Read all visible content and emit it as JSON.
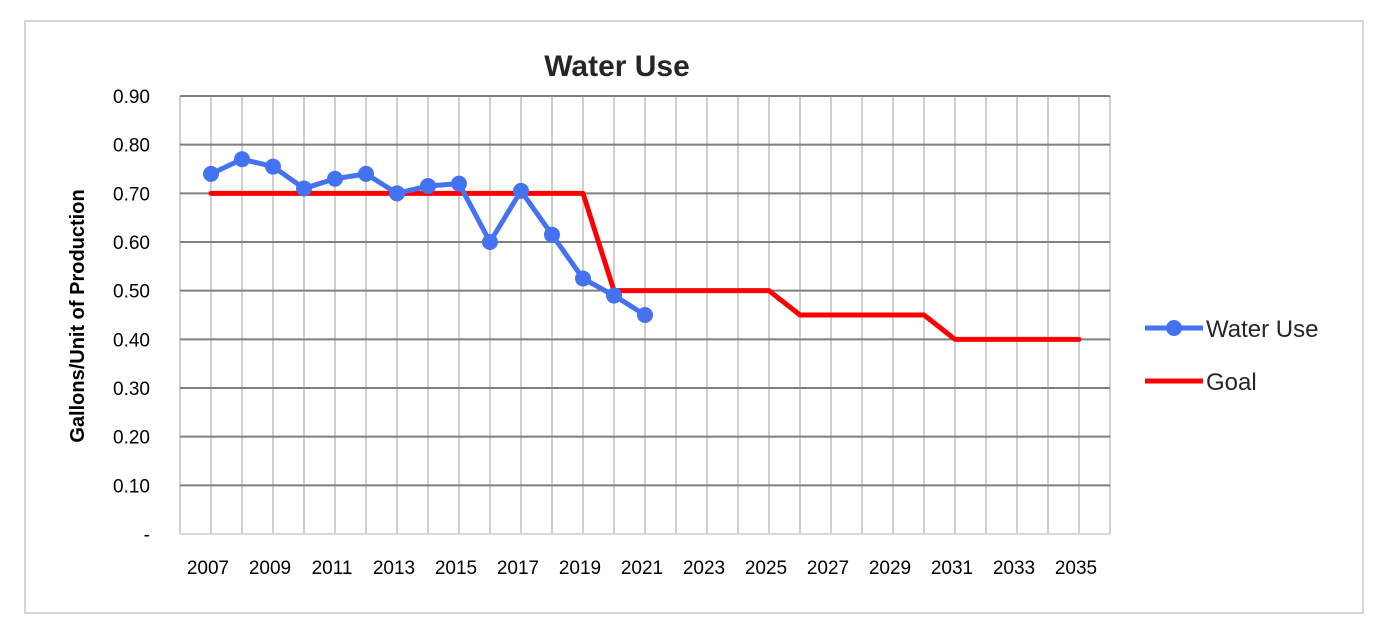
{
  "chart_data": {
    "type": "line",
    "title": "Water Use",
    "xlabel": "",
    "ylabel": "Gallons/Unit of Production",
    "xlim": [
      2006,
      2036
    ],
    "ylim": [
      0,
      0.9
    ],
    "x_tick_labels": [
      "2007",
      "2009",
      "2011",
      "2013",
      "2015",
      "2017",
      "2019",
      "2021",
      "2023",
      "2025",
      "2027",
      "2029",
      "2031",
      "2033",
      "2035"
    ],
    "y_tick_labels": [
      "-",
      "0.10",
      "0.20",
      "0.30",
      "0.40",
      "0.50",
      "0.60",
      "0.70",
      "0.80",
      "0.90"
    ],
    "grid": true,
    "legend_position": "right",
    "series": [
      {
        "name": "Water Use",
        "color": "#4472f0",
        "marker": "circle",
        "x": [
          2007,
          2008,
          2009,
          2010,
          2011,
          2012,
          2013,
          2014,
          2015,
          2016,
          2017,
          2018,
          2019,
          2020,
          2021
        ],
        "y": [
          0.74,
          0.77,
          0.755,
          0.71,
          0.73,
          0.74,
          0.7,
          0.715,
          0.72,
          0.6,
          0.705,
          0.615,
          0.525,
          0.49,
          0.45
        ]
      },
      {
        "name": "Goal",
        "color": "#ff0000",
        "marker": "none",
        "x": [
          2007,
          2008,
          2009,
          2010,
          2011,
          2012,
          2013,
          2014,
          2015,
          2016,
          2017,
          2018,
          2019,
          2020,
          2021,
          2022,
          2023,
          2024,
          2025,
          2026,
          2027,
          2028,
          2029,
          2030,
          2031,
          2032,
          2033,
          2034,
          2035
        ],
        "y": [
          0.7,
          0.7,
          0.7,
          0.7,
          0.7,
          0.7,
          0.7,
          0.7,
          0.7,
          0.7,
          0.7,
          0.7,
          0.7,
          0.5,
          0.5,
          0.5,
          0.5,
          0.5,
          0.5,
          0.45,
          0.45,
          0.45,
          0.45,
          0.45,
          0.4,
          0.4,
          0.4,
          0.4,
          0.4
        ]
      }
    ]
  }
}
